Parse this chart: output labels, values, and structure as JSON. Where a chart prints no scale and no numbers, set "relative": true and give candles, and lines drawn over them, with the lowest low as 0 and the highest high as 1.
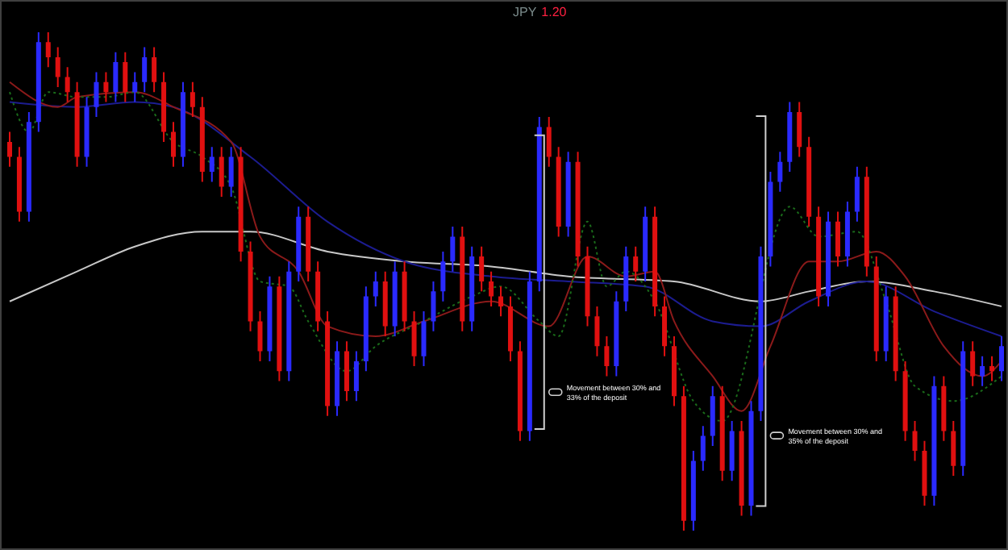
{
  "chart_data": {
    "type": "candlestick",
    "title": "JPY",
    "subtitle": "1.20",
    "relative": true,
    "tick_labels": false,
    "categories": [
      null,
      null,
      null,
      null,
      null,
      null,
      null,
      null,
      null,
      null,
      null,
      null,
      null,
      null,
      null,
      null,
      null,
      null,
      null,
      null,
      null,
      null,
      null,
      null,
      null,
      null,
      null,
      null,
      null,
      null,
      null,
      null,
      null,
      null,
      null,
      null,
      null,
      null,
      null,
      null,
      null,
      null,
      null,
      null,
      null,
      null,
      null,
      null,
      null,
      null,
      null,
      null,
      null,
      null,
      null,
      null,
      null,
      null,
      null,
      null,
      null,
      null,
      null,
      null,
      null,
      null,
      null,
      null,
      null,
      null,
      null,
      null,
      null,
      null,
      null,
      null,
      null,
      null,
      null,
      null,
      null,
      null,
      null,
      null,
      null,
      null,
      null,
      null,
      null,
      null,
      null,
      null,
      null,
      null,
      null,
      null,
      null,
      null,
      null,
      null,
      null,
      null,
      null,
      null
    ],
    "annotations": [
      "Movement between 30% and 33% of the deposit",
      "Movement between 30% and 35% of the deposit"
    ],
    "series": [
      {
        "ohlc": [
          [
            0.78,
            0.8,
            0.73,
            0.75
          ],
          [
            0.75,
            0.77,
            0.62,
            0.64
          ],
          [
            0.64,
            0.84,
            0.62,
            0.82
          ],
          [
            0.82,
            1.0,
            0.8,
            0.98
          ],
          [
            0.98,
            1.0,
            0.93,
            0.95
          ],
          [
            0.95,
            0.97,
            0.89,
            0.91
          ],
          [
            0.91,
            0.93,
            0.86,
            0.88
          ],
          [
            0.88,
            0.9,
            0.73,
            0.75
          ],
          [
            0.75,
            0.87,
            0.73,
            0.85
          ],
          [
            0.85,
            0.92,
            0.83,
            0.9
          ],
          [
            0.9,
            0.92,
            0.86,
            0.88
          ],
          [
            0.88,
            0.96,
            0.86,
            0.94
          ],
          [
            0.94,
            0.96,
            0.86,
            0.88
          ],
          [
            0.88,
            0.92,
            0.86,
            0.9
          ],
          [
            0.9,
            0.97,
            0.88,
            0.95
          ],
          [
            0.95,
            0.97,
            0.88,
            0.9
          ],
          [
            0.9,
            0.92,
            0.78,
            0.8
          ],
          [
            0.8,
            0.82,
            0.73,
            0.75
          ],
          [
            0.75,
            0.9,
            0.73,
            0.88
          ],
          [
            0.88,
            0.9,
            0.83,
            0.85
          ],
          [
            0.85,
            0.87,
            0.7,
            0.72
          ],
          [
            0.72,
            0.77,
            0.7,
            0.75
          ],
          [
            0.75,
            0.77,
            0.67,
            0.69
          ],
          [
            0.69,
            0.77,
            0.67,
            0.75
          ],
          [
            0.75,
            0.77,
            0.54,
            0.56
          ],
          [
            0.56,
            0.58,
            0.4,
            0.42
          ],
          [
            0.42,
            0.44,
            0.34,
            0.36
          ],
          [
            0.36,
            0.51,
            0.34,
            0.49
          ],
          [
            0.49,
            0.51,
            0.3,
            0.32
          ],
          [
            0.32,
            0.54,
            0.3,
            0.52
          ],
          [
            0.52,
            0.65,
            0.5,
            0.63
          ],
          [
            0.63,
            0.65,
            0.5,
            0.52
          ],
          [
            0.52,
            0.54,
            0.4,
            0.42
          ],
          [
            0.42,
            0.44,
            0.23,
            0.25
          ],
          [
            0.25,
            0.38,
            0.23,
            0.36
          ],
          [
            0.36,
            0.38,
            0.26,
            0.28
          ],
          [
            0.28,
            0.36,
            0.26,
            0.34
          ],
          [
            0.34,
            0.49,
            0.32,
            0.47
          ],
          [
            0.47,
            0.52,
            0.45,
            0.5
          ],
          [
            0.5,
            0.52,
            0.39,
            0.41
          ],
          [
            0.41,
            0.54,
            0.39,
            0.52
          ],
          [
            0.52,
            0.54,
            0.4,
            0.42
          ],
          [
            0.42,
            0.44,
            0.33,
            0.35
          ],
          [
            0.35,
            0.44,
            0.33,
            0.42
          ],
          [
            0.42,
            0.5,
            0.4,
            0.48
          ],
          [
            0.48,
            0.56,
            0.46,
            0.54
          ],
          [
            0.54,
            0.61,
            0.52,
            0.59
          ],
          [
            0.59,
            0.61,
            0.4,
            0.42
          ],
          [
            0.42,
            0.57,
            0.4,
            0.55
          ],
          [
            0.55,
            0.57,
            0.48,
            0.5
          ],
          [
            0.5,
            0.52,
            0.45,
            0.47
          ],
          [
            0.47,
            0.49,
            0.43,
            0.45
          ],
          [
            0.45,
            0.47,
            0.34,
            0.36
          ],
          [
            0.36,
            0.38,
            0.18,
            0.2
          ],
          [
            0.2,
            0.52,
            0.18,
            0.5
          ],
          [
            0.5,
            0.83,
            0.48,
            0.81
          ],
          [
            0.81,
            0.83,
            0.73,
            0.75
          ],
          [
            0.75,
            0.77,
            0.59,
            0.61
          ],
          [
            0.61,
            0.76,
            0.59,
            0.74
          ],
          [
            0.74,
            0.76,
            0.53,
            0.55
          ],
          [
            0.55,
            0.57,
            0.41,
            0.43
          ],
          [
            0.43,
            0.45,
            0.35,
            0.37
          ],
          [
            0.37,
            0.39,
            0.31,
            0.33
          ],
          [
            0.33,
            0.48,
            0.31,
            0.46
          ],
          [
            0.46,
            0.57,
            0.44,
            0.55
          ],
          [
            0.55,
            0.57,
            0.5,
            0.52
          ],
          [
            0.52,
            0.65,
            0.5,
            0.63
          ],
          [
            0.63,
            0.65,
            0.43,
            0.45
          ],
          [
            0.45,
            0.47,
            0.35,
            0.37
          ],
          [
            0.37,
            0.39,
            0.25,
            0.27
          ],
          [
            0.27,
            0.29,
            0.0,
            0.02
          ],
          [
            0.02,
            0.16,
            0.0,
            0.14
          ],
          [
            0.14,
            0.21,
            0.12,
            0.19
          ],
          [
            0.19,
            0.29,
            0.17,
            0.27
          ],
          [
            0.27,
            0.29,
            0.1,
            0.12
          ],
          [
            0.12,
            0.22,
            0.1,
            0.2
          ],
          [
            0.2,
            0.22,
            0.03,
            0.05
          ],
          [
            0.05,
            0.26,
            0.03,
            0.24
          ],
          [
            0.24,
            0.57,
            0.22,
            0.55
          ],
          [
            0.55,
            0.72,
            0.53,
            0.7
          ],
          [
            0.7,
            0.76,
            0.68,
            0.74
          ],
          [
            0.74,
            0.86,
            0.72,
            0.84
          ],
          [
            0.84,
            0.86,
            0.75,
            0.77
          ],
          [
            0.77,
            0.79,
            0.61,
            0.63
          ],
          [
            0.63,
            0.65,
            0.45,
            0.47
          ],
          [
            0.47,
            0.64,
            0.45,
            0.62
          ],
          [
            0.62,
            0.64,
            0.53,
            0.55
          ],
          [
            0.55,
            0.66,
            0.53,
            0.64
          ],
          [
            0.64,
            0.73,
            0.62,
            0.71
          ],
          [
            0.71,
            0.73,
            0.51,
            0.53
          ],
          [
            0.53,
            0.55,
            0.34,
            0.36
          ],
          [
            0.36,
            0.49,
            0.34,
            0.47
          ],
          [
            0.47,
            0.49,
            0.3,
            0.32
          ],
          [
            0.32,
            0.34,
            0.18,
            0.2
          ],
          [
            0.2,
            0.22,
            0.14,
            0.16
          ],
          [
            0.16,
            0.18,
            0.05,
            0.07
          ],
          [
            0.07,
            0.31,
            0.05,
            0.29
          ],
          [
            0.29,
            0.31,
            0.18,
            0.2
          ],
          [
            0.2,
            0.22,
            0.11,
            0.13
          ],
          [
            0.13,
            0.38,
            0.11,
            0.36
          ],
          [
            0.36,
            0.38,
            0.29,
            0.31
          ],
          [
            0.31,
            0.35,
            0.29,
            0.33
          ],
          [
            0.33,
            0.35,
            0.3,
            0.32
          ],
          [
            0.32,
            0.39,
            0.3,
            0.37
          ]
        ],
        "colors": [
          "#e01010",
          "#e01010",
          "#2a2aff",
          "#2a2aff",
          "#e01010",
          "#e01010",
          "#e01010",
          "#e01010",
          "#2a2aff",
          "#2a2aff",
          "#e01010",
          "#2a2aff",
          "#e01010",
          "#2a2aff",
          "#2a2aff",
          "#e01010",
          "#e01010",
          "#e01010",
          "#2a2aff",
          "#e01010",
          "#e01010",
          "#2a2aff",
          "#e01010",
          "#2a2aff",
          "#e01010",
          "#e01010",
          "#e01010",
          "#2a2aff",
          "#e01010",
          "#2a2aff",
          "#2a2aff",
          "#e01010",
          "#e01010",
          "#e01010",
          "#2a2aff",
          "#e01010",
          "#2a2aff",
          "#2a2aff",
          "#2a2aff",
          "#e01010",
          "#2a2aff",
          "#e01010",
          "#e01010",
          "#2a2aff",
          "#2a2aff",
          "#2a2aff",
          "#2a2aff",
          "#e01010",
          "#2a2aff",
          "#e01010",
          "#e01010",
          "#e01010",
          "#e01010",
          "#e01010",
          "#2a2aff",
          "#2a2aff",
          "#e01010",
          "#e01010",
          "#2a2aff",
          "#e01010",
          "#e01010",
          "#e01010",
          "#e01010",
          "#2a2aff",
          "#2a2aff",
          "#e01010",
          "#2a2aff",
          "#e01010",
          "#e01010",
          "#e01010",
          "#e01010",
          "#2a2aff",
          "#2a2aff",
          "#2a2aff",
          "#e01010",
          "#2a2aff",
          "#e01010",
          "#2a2aff",
          "#2a2aff",
          "#2a2aff",
          "#2a2aff",
          "#2a2aff",
          "#e01010",
          "#e01010",
          "#e01010",
          "#2a2aff",
          "#e01010",
          "#2a2aff",
          "#2a2aff",
          "#e01010",
          "#e01010",
          "#2a2aff",
          "#e01010",
          "#e01010",
          "#e01010",
          "#e01010",
          "#2a2aff",
          "#e01010",
          "#e01010",
          "#2a2aff",
          "#e01010",
          "#2a2aff",
          "#e01010",
          "#2a2aff"
        ]
      },
      {
        "type": "line",
        "color": "#c8c8c8",
        "values": [
          0.46,
          null,
          null,
          null,
          null,
          null,
          null,
          0.52,
          null,
          null,
          null,
          null,
          null,
          0.57,
          null,
          null,
          null,
          null,
          null,
          null,
          0.6,
          null,
          null,
          null,
          null,
          0.6,
          null,
          null,
          null,
          null,
          null,
          null,
          null,
          0.56,
          null,
          null,
          null,
          null,
          null,
          null,
          null,
          0.54,
          null,
          null,
          null,
          null,
          null,
          null,
          null,
          null,
          0.53,
          null,
          null,
          null,
          null,
          null,
          null,
          null,
          0.51,
          null,
          null,
          null,
          null,
          null,
          null,
          null,
          null,
          null,
          null,
          0.5,
          null,
          null,
          null,
          null,
          null,
          null,
          null,
          null,
          0.46,
          null,
          null,
          null,
          null,
          0.48,
          null,
          null,
          null,
          null,
          null,
          0.5,
          null,
          null,
          null,
          null,
          null,
          null,
          0.48,
          null,
          null,
          null,
          null,
          null,
          null,
          0.45
        ]
      },
      {
        "type": "line",
        "color": "#1c1c90",
        "values": [
          0.86,
          null,
          null,
          null,
          null,
          null,
          null,
          0.85,
          null,
          null,
          null,
          null,
          null,
          0.86,
          null,
          null,
          null,
          0.85,
          null,
          null,
          null,
          null,
          null,
          null,
          null,
          0.75,
          null,
          null,
          null,
          null,
          null,
          null,
          null,
          0.62,
          null,
          null,
          null,
          null,
          null,
          null,
          null,
          0.54,
          null,
          null,
          null,
          null,
          null,
          null,
          null,
          null,
          0.51,
          null,
          null,
          null,
          null,
          null,
          null,
          null,
          0.5,
          null,
          null,
          null,
          null,
          null,
          null,
          null,
          0.49,
          null,
          null,
          null,
          null,
          null,
          null,
          0.42,
          null,
          null,
          null,
          null,
          0.41,
          null,
          null,
          null,
          null,
          0.46,
          null,
          null,
          null,
          null,
          null,
          0.5,
          null,
          null,
          null,
          null,
          null,
          null,
          0.44,
          null,
          null,
          null,
          null,
          null,
          null,
          0.39
        ]
      },
      {
        "type": "line",
        "color": "#8b1a1a",
        "values": [
          0.9,
          null,
          null,
          null,
          null,
          0.85,
          null,
          0.87,
          null,
          null,
          null,
          null,
          null,
          0.88,
          null,
          null,
          null,
          0.85,
          null,
          null,
          null,
          null,
          null,
          0.78,
          null,
          null,
          0.59,
          null,
          null,
          null,
          0.52,
          null,
          null,
          0.41,
          null,
          null,
          null,
          null,
          0.39,
          null,
          null,
          null,
          null,
          0.42,
          null,
          null,
          null,
          null,
          null,
          null,
          0.46,
          null,
          null,
          null,
          null,
          null,
          0.41,
          null,
          null,
          null,
          0.55,
          null,
          null,
          null,
          0.51,
          null,
          null,
          0.52,
          null,
          0.42,
          null,
          null,
          null,
          0.31,
          null,
          null,
          0.24,
          null,
          null,
          0.37,
          null,
          null,
          null,
          0.54,
          null,
          null,
          0.54,
          null,
          null,
          null,
          0.56,
          null,
          null,
          0.51,
          null,
          null,
          null,
          0.37,
          null,
          null,
          null,
          0.31,
          null,
          0.34
        ]
      },
      {
        "type": "line",
        "color": "#1a6b1a",
        "line_style": "dotted",
        "values": [
          0.88,
          null,
          0.8,
          null,
          0.88,
          null,
          null,
          0.87,
          null,
          null,
          0.87,
          null,
          null,
          0.88,
          null,
          null,
          null,
          0.78,
          null,
          null,
          0.75,
          null,
          null,
          0.69,
          null,
          null,
          0.5,
          null,
          null,
          0.49,
          null,
          0.42,
          null,
          null,
          null,
          0.32,
          null,
          null,
          0.37,
          null,
          null,
          null,
          null,
          0.42,
          null,
          null,
          null,
          null,
          0.47,
          null,
          null,
          0.49,
          null,
          null,
          null,
          0.42,
          null,
          0.39,
          null,
          null,
          0.62,
          null,
          0.49,
          null,
          0.52,
          null,
          null,
          0.46,
          null,
          null,
          null,
          0.26,
          null,
          null,
          0.22,
          null,
          null,
          null,
          null,
          null,
          null,
          0.65,
          null,
          null,
          0.59,
          null,
          null,
          null,
          0.6,
          null,
          null,
          0.46,
          null,
          null,
          0.29,
          null,
          null,
          null,
          0.26,
          null,
          null,
          null,
          null,
          0.31
        ]
      }
    ]
  }
}
